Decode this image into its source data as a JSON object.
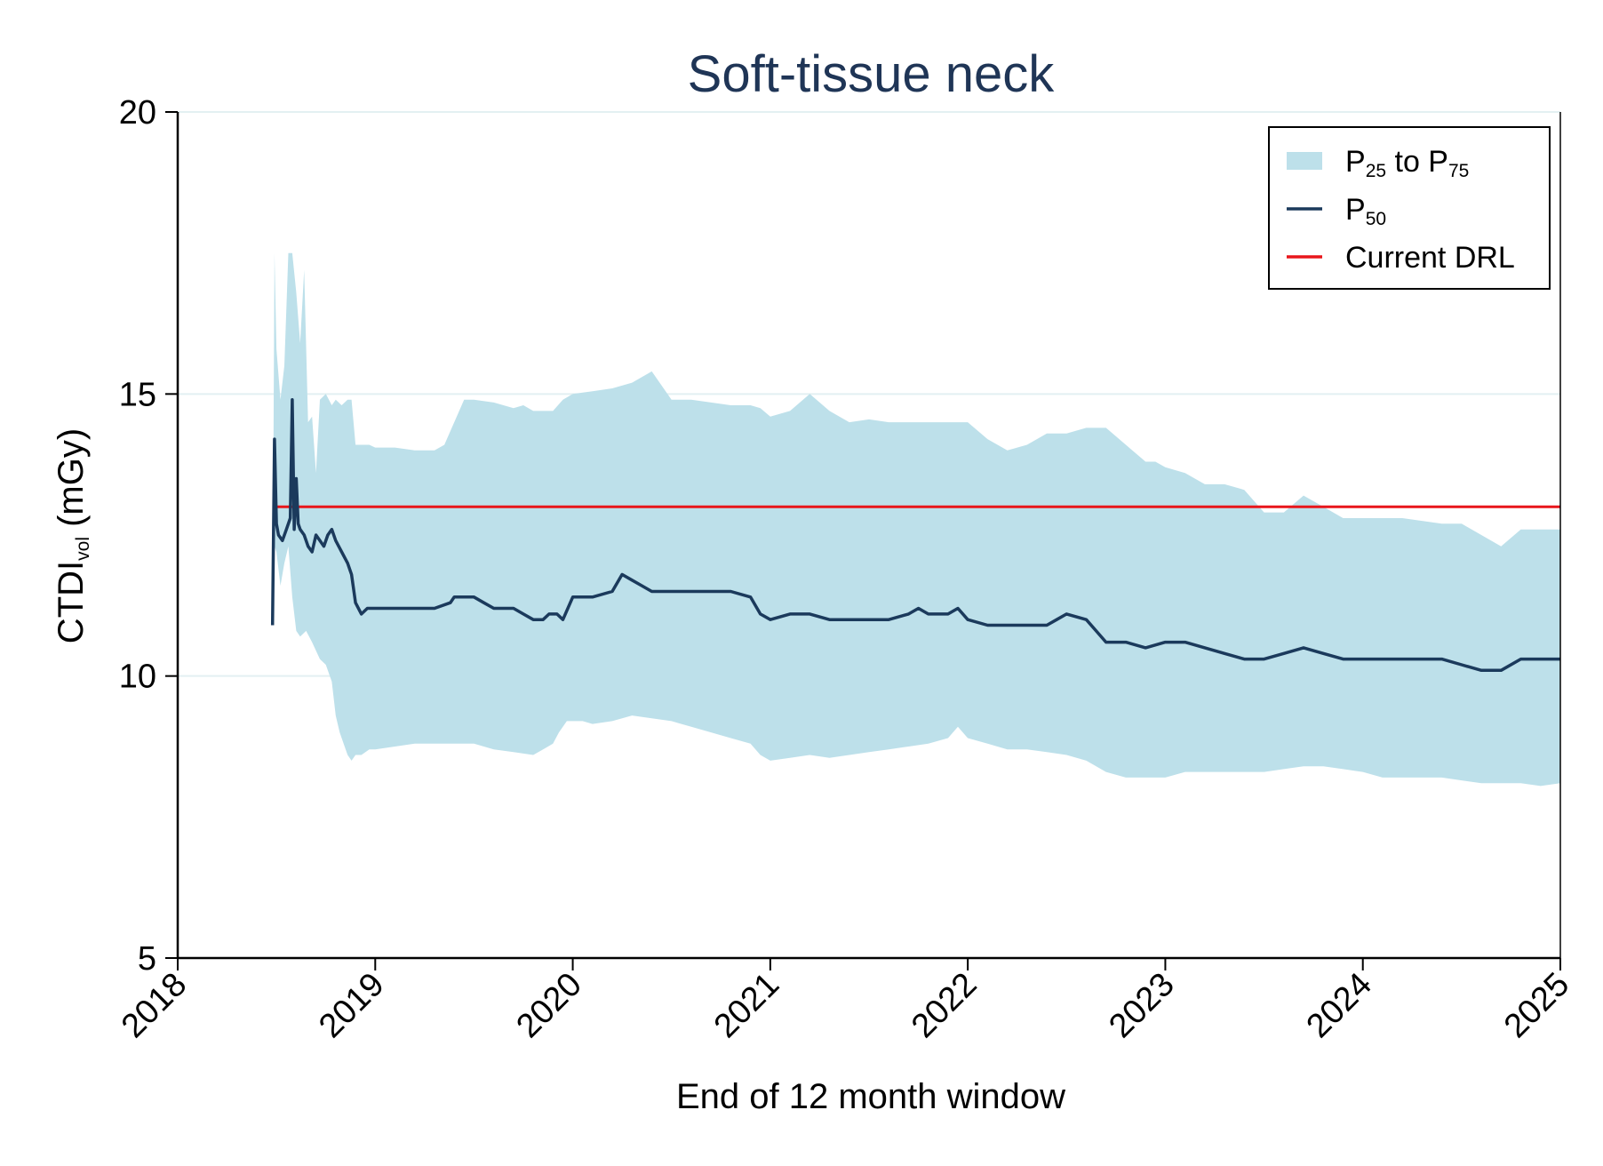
{
  "chart_data": {
    "type": "area",
    "title": "Soft-tissue neck",
    "xlabel": "End of 12 month window",
    "ylabel": {
      "main": "CTDI",
      "sub": "vol",
      "unit": " (mGy)"
    },
    "xlim": [
      2018,
      2025
    ],
    "ylim": [
      5,
      20
    ],
    "x_ticks": [
      "2018",
      "2019",
      "2020",
      "2021",
      "2022",
      "2023",
      "2024",
      "2025"
    ],
    "y_ticks": [
      "5",
      "10",
      "15",
      "20"
    ],
    "grid": {
      "y": true,
      "x": false
    },
    "legend_position": "top-right",
    "legend": [
      {
        "kind": "band",
        "label_parts": [
          [
            "P",
            ""
          ],
          [
            "25",
            "sub"
          ],
          [
            " to P",
            ""
          ],
          [
            "75",
            "sub"
          ]
        ],
        "color": "#bde0ea"
      },
      {
        "kind": "line",
        "label_parts": [
          [
            "P",
            ""
          ],
          [
            "50",
            "sub"
          ]
        ],
        "color": "#1b3a5c"
      },
      {
        "kind": "line",
        "label_parts": [
          [
            "Current DRL",
            ""
          ]
        ],
        "color": "#e8161b"
      }
    ],
    "colors": {
      "band": "#bde0ea",
      "median": "#1b3a5c",
      "drl": "#e8161b",
      "grid": "#e3f0f2"
    },
    "drl": {
      "value": 13.0,
      "x_start": 2018.48,
      "x_end": 2025.0
    },
    "series": [
      {
        "name": "P25",
        "x": [
          2018.48,
          2018.49,
          2018.5,
          2018.52,
          2018.54,
          2018.56,
          2018.58,
          2018.6,
          2018.62,
          2018.65,
          2018.68,
          2018.72,
          2018.75,
          2018.78,
          2018.8,
          2018.82,
          2018.84,
          2018.86,
          2018.88,
          2018.9,
          2018.93,
          2018.97,
          2019.0,
          2019.1,
          2019.2,
          2019.3,
          2019.4,
          2019.5,
          2019.6,
          2019.7,
          2019.8,
          2019.85,
          2019.9,
          2019.93,
          2019.97,
          2020.0,
          2020.05,
          2020.1,
          2020.2,
          2020.3,
          2020.4,
          2020.5,
          2020.6,
          2020.7,
          2020.8,
          2020.9,
          2020.95,
          2021.0,
          2021.1,
          2021.2,
          2021.3,
          2021.4,
          2021.5,
          2021.6,
          2021.7,
          2021.8,
          2021.9,
          2021.95,
          2022.0,
          2022.1,
          2022.2,
          2022.3,
          2022.4,
          2022.5,
          2022.6,
          2022.7,
          2022.8,
          2022.9,
          2023.0,
          2023.1,
          2023.2,
          2023.3,
          2023.4,
          2023.5,
          2023.6,
          2023.7,
          2023.8,
          2023.9,
          2024.0,
          2024.1,
          2024.2,
          2024.3,
          2024.4,
          2024.5,
          2024.6,
          2024.7,
          2024.8,
          2024.9,
          2025.0
        ],
        "values": [
          10.9,
          12.3,
          12.2,
          11.6,
          12.0,
          12.3,
          11.4,
          10.8,
          10.7,
          10.8,
          10.6,
          10.3,
          10.2,
          9.9,
          9.3,
          9.0,
          8.8,
          8.6,
          8.5,
          8.6,
          8.6,
          8.7,
          8.7,
          8.75,
          8.8,
          8.8,
          8.8,
          8.8,
          8.7,
          8.65,
          8.6,
          8.7,
          8.8,
          9.0,
          9.2,
          9.2,
          9.2,
          9.15,
          9.2,
          9.3,
          9.25,
          9.2,
          9.1,
          9.0,
          8.9,
          8.8,
          8.6,
          8.5,
          8.55,
          8.6,
          8.55,
          8.6,
          8.65,
          8.7,
          8.75,
          8.8,
          8.9,
          9.1,
          8.9,
          8.8,
          8.7,
          8.7,
          8.65,
          8.6,
          8.5,
          8.3,
          8.2,
          8.2,
          8.2,
          8.3,
          8.3,
          8.3,
          8.3,
          8.3,
          8.35,
          8.4,
          8.4,
          8.35,
          8.3,
          8.2,
          8.2,
          8.2,
          8.2,
          8.15,
          8.1,
          8.1,
          8.1,
          8.05,
          8.1
        ]
      },
      {
        "name": "P50",
        "x": [
          2018.48,
          2018.49,
          2018.5,
          2018.51,
          2018.53,
          2018.55,
          2018.57,
          2018.58,
          2018.59,
          2018.6,
          2018.61,
          2018.62,
          2018.64,
          2018.66,
          2018.68,
          2018.7,
          2018.72,
          2018.74,
          2018.76,
          2018.78,
          2018.8,
          2018.83,
          2018.86,
          2018.88,
          2018.9,
          2018.93,
          2018.96,
          2019.0,
          2019.1,
          2019.2,
          2019.3,
          2019.38,
          2019.4,
          2019.5,
          2019.55,
          2019.6,
          2019.7,
          2019.75,
          2019.8,
          2019.85,
          2019.88,
          2019.92,
          2019.95,
          2020.0,
          2020.1,
          2020.2,
          2020.25,
          2020.3,
          2020.35,
          2020.4,
          2020.5,
          2020.6,
          2020.7,
          2020.8,
          2020.9,
          2020.95,
          2021.0,
          2021.1,
          2021.2,
          2021.3,
          2021.4,
          2021.5,
          2021.6,
          2021.7,
          2021.75,
          2021.8,
          2021.9,
          2021.95,
          2022.0,
          2022.1,
          2022.2,
          2022.3,
          2022.4,
          2022.45,
          2022.5,
          2022.6,
          2022.65,
          2022.7,
          2022.8,
          2022.9,
          2023.0,
          2023.1,
          2023.2,
          2023.3,
          2023.4,
          2023.5,
          2023.6,
          2023.7,
          2023.8,
          2023.9,
          2024.0,
          2024.1,
          2024.2,
          2024.3,
          2024.4,
          2024.5,
          2024.6,
          2024.7,
          2024.8,
          2024.9,
          2025.0
        ],
        "values": [
          10.9,
          14.2,
          12.7,
          12.5,
          12.4,
          12.6,
          12.8,
          14.9,
          12.6,
          13.5,
          12.7,
          12.6,
          12.5,
          12.3,
          12.2,
          12.5,
          12.4,
          12.3,
          12.5,
          12.6,
          12.4,
          12.2,
          12.0,
          11.8,
          11.3,
          11.1,
          11.2,
          11.2,
          11.2,
          11.2,
          11.2,
          11.3,
          11.4,
          11.4,
          11.3,
          11.2,
          11.2,
          11.1,
          11.0,
          11.0,
          11.1,
          11.1,
          11.0,
          11.4,
          11.4,
          11.5,
          11.8,
          11.7,
          11.6,
          11.5,
          11.5,
          11.5,
          11.5,
          11.5,
          11.4,
          11.1,
          11.0,
          11.1,
          11.1,
          11.0,
          11.0,
          11.0,
          11.0,
          11.1,
          11.2,
          11.1,
          11.1,
          11.2,
          11.0,
          10.9,
          10.9,
          10.9,
          10.9,
          11.0,
          11.1,
          11.0,
          10.8,
          10.6,
          10.6,
          10.5,
          10.6,
          10.6,
          10.5,
          10.4,
          10.3,
          10.3,
          10.4,
          10.5,
          10.4,
          10.3,
          10.3,
          10.3,
          10.3,
          10.3,
          10.3,
          10.2,
          10.1,
          10.1,
          10.3,
          10.3,
          10.3
        ]
      },
      {
        "name": "P75",
        "x": [
          2018.48,
          2018.49,
          2018.5,
          2018.52,
          2018.54,
          2018.56,
          2018.58,
          2018.6,
          2018.62,
          2018.64,
          2018.66,
          2018.68,
          2018.7,
          2018.72,
          2018.75,
          2018.78,
          2018.8,
          2018.83,
          2018.86,
          2018.88,
          2018.9,
          2018.93,
          2018.97,
          2019.0,
          2019.1,
          2019.2,
          2019.3,
          2019.35,
          2019.4,
          2019.45,
          2019.5,
          2019.6,
          2019.7,
          2019.75,
          2019.8,
          2019.85,
          2019.9,
          2019.95,
          2020.0,
          2020.1,
          2020.2,
          2020.3,
          2020.4,
          2020.5,
          2020.6,
          2020.7,
          2020.8,
          2020.9,
          2020.95,
          2021.0,
          2021.1,
          2021.2,
          2021.3,
          2021.4,
          2021.5,
          2021.6,
          2021.7,
          2021.8,
          2021.9,
          2021.95,
          2022.0,
          2022.1,
          2022.2,
          2022.3,
          2022.4,
          2022.5,
          2022.6,
          2022.7,
          2022.8,
          2022.9,
          2022.95,
          2023.0,
          2023.1,
          2023.2,
          2023.3,
          2023.4,
          2023.5,
          2023.6,
          2023.7,
          2023.8,
          2023.9,
          2024.0,
          2024.1,
          2024.2,
          2024.3,
          2024.4,
          2024.5,
          2024.6,
          2024.7,
          2024.8,
          2024.9,
          2025.0
        ],
        "values": [
          10.9,
          17.5,
          15.8,
          14.9,
          15.5,
          17.5,
          17.5,
          16.8,
          15.9,
          17.2,
          14.5,
          14.6,
          13.6,
          14.9,
          15.0,
          14.8,
          14.9,
          14.8,
          14.9,
          14.9,
          14.1,
          14.1,
          14.1,
          14.05,
          14.05,
          14.0,
          14.0,
          14.1,
          14.5,
          14.9,
          14.9,
          14.85,
          14.75,
          14.8,
          14.7,
          14.7,
          14.7,
          14.9,
          15.0,
          15.05,
          15.1,
          15.2,
          15.4,
          14.9,
          14.9,
          14.85,
          14.8,
          14.8,
          14.75,
          14.6,
          14.7,
          15.0,
          14.7,
          14.5,
          14.55,
          14.5,
          14.5,
          14.5,
          14.5,
          14.5,
          14.5,
          14.2,
          14.0,
          14.1,
          14.3,
          14.3,
          14.4,
          14.4,
          14.1,
          13.8,
          13.8,
          13.7,
          13.6,
          13.4,
          13.4,
          13.3,
          12.9,
          12.9,
          13.2,
          13.0,
          12.8,
          12.8,
          12.8,
          12.8,
          12.75,
          12.7,
          12.7,
          12.5,
          12.3,
          12.6,
          12.6,
          12.6
        ]
      }
    ]
  }
}
